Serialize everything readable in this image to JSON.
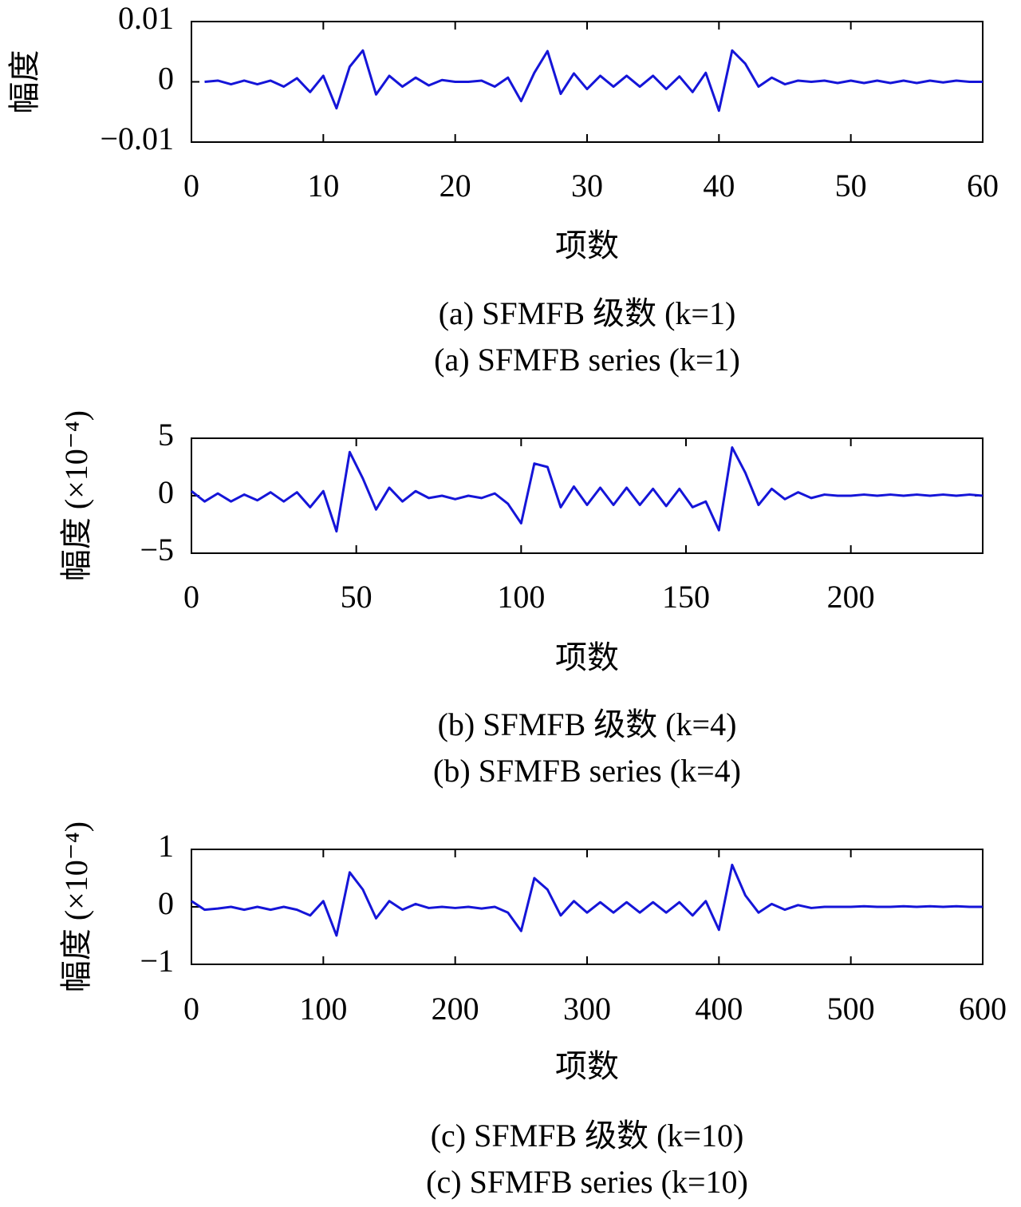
{
  "chart_data": [
    {
      "type": "line",
      "title": "(a) SFMFB 级数 (k=1)",
      "subtitle": "(a) SFMFB series (k=1)",
      "x_label": "项数",
      "y_label": "幅度",
      "color": "#1515d8",
      "x": [
        1,
        2,
        3,
        4,
        5,
        6,
        7,
        8,
        9,
        10,
        11,
        12,
        13,
        14,
        15,
        16,
        17,
        18,
        19,
        20,
        21,
        22,
        23,
        24,
        25,
        26,
        27,
        28,
        29,
        30,
        31,
        32,
        33,
        34,
        35,
        36,
        37,
        38,
        39,
        40,
        41,
        42,
        43,
        44,
        45,
        46,
        47,
        48,
        49,
        50,
        51,
        52,
        53,
        54,
        55,
        56,
        57,
        58,
        59,
        60
      ],
      "values": [
        0,
        0.0002,
        -0.0004,
        0.0002,
        -0.0004,
        0.0002,
        -0.0008,
        0.0006,
        -0.0017,
        0.001,
        -0.0044,
        0.0025,
        0.0052,
        -0.0021,
        0.001,
        -0.0008,
        0.0007,
        -0.0006,
        0.0003,
        0,
        0,
        0.0002,
        -0.0008,
        0.0007,
        -0.0032,
        0.0015,
        0.0051,
        -0.002,
        0.0014,
        -0.0012,
        0.001,
        -0.0008,
        0.001,
        -0.0008,
        0.001,
        -0.0012,
        0.0009,
        -0.0017,
        0.0015,
        -0.0048,
        0.0052,
        0.003,
        -0.0008,
        0.0007,
        -0.0004,
        0.0002,
        0,
        0.0002,
        -0.0002,
        0.0002,
        -0.0002,
        0.0002,
        -0.0002,
        0.0002,
        -0.0002,
        0.0002,
        -0.0001,
        0.0002,
        0,
        0
      ],
      "xlim": [
        0,
        60
      ],
      "xticks": [
        0,
        10,
        20,
        30,
        40,
        50,
        60
      ],
      "ylim": [
        -0.01,
        0.01
      ],
      "yticks": [
        {
          "value": -0.01,
          "label": "−0.01"
        },
        0,
        0.01
      ]
    },
    {
      "type": "line",
      "title": "(b) SFMFB 级数 (k=4)",
      "subtitle": "(b) SFMFB series (k=4)",
      "x_label": "项数",
      "y_label": "幅度 (×10⁻⁴)",
      "color": "#1515d8",
      "x": [
        0,
        4,
        8,
        12,
        16,
        20,
        24,
        28,
        32,
        36,
        40,
        44,
        48,
        52,
        56,
        60,
        64,
        68,
        72,
        76,
        80,
        84,
        88,
        92,
        96,
        100,
        104,
        108,
        112,
        116,
        120,
        124,
        128,
        132,
        136,
        140,
        144,
        148,
        152,
        156,
        160,
        164,
        168,
        172,
        176,
        180,
        184,
        188,
        192,
        196,
        200,
        204,
        208,
        212,
        216,
        220,
        224,
        228,
        232,
        236,
        240
      ],
      "values": [
        0.4,
        -0.5,
        0.2,
        -0.5,
        0.1,
        -0.4,
        0.3,
        -0.5,
        0.3,
        -1.0,
        0.4,
        -3.1,
        3.8,
        1.5,
        -1.2,
        0.7,
        -0.5,
        0.4,
        -0.2,
        0,
        -0.3,
        0,
        -0.2,
        0.2,
        -0.7,
        -2.4,
        2.8,
        2.5,
        -1.0,
        0.8,
        -0.8,
        0.7,
        -0.8,
        0.7,
        -0.8,
        0.6,
        -0.9,
        0.6,
        -1.0,
        -0.5,
        -3.0,
        4.2,
        2.0,
        -0.8,
        0.6,
        -0.3,
        0.3,
        -0.2,
        0.1,
        0,
        0,
        0.1,
        0,
        0.1,
        0,
        0.1,
        0,
        0.1,
        0,
        0.1,
        0
      ],
      "xlim": [
        0,
        240
      ],
      "xticks": [
        0,
        50,
        100,
        150,
        200
      ],
      "ylim": [
        -5,
        5
      ],
      "yticks": [
        {
          "value": -5,
          "label": "−5"
        },
        0,
        5
      ]
    },
    {
      "type": "line",
      "title": "(c) SFMFB 级数 (k=10)",
      "subtitle": "(c) SFMFB series (k=10)",
      "x_label": "项数",
      "y_label": "幅度 (×10⁻⁴)",
      "color": "#1515d8",
      "x": [
        0,
        10,
        20,
        30,
        40,
        50,
        60,
        70,
        80,
        90,
        100,
        110,
        120,
        130,
        140,
        150,
        160,
        170,
        180,
        190,
        200,
        210,
        220,
        230,
        240,
        250,
        260,
        270,
        280,
        290,
        300,
        310,
        320,
        330,
        340,
        350,
        360,
        370,
        380,
        390,
        400,
        410,
        420,
        430,
        440,
        450,
        460,
        470,
        480,
        490,
        500,
        510,
        520,
        530,
        540,
        550,
        560,
        570,
        580,
        590,
        600
      ],
      "values": [
        0.1,
        -0.05,
        -0.03,
        0,
        -0.05,
        0,
        -0.05,
        0,
        -0.05,
        -0.15,
        0.1,
        -0.5,
        0.6,
        0.3,
        -0.2,
        0.1,
        -0.05,
        0.05,
        -0.02,
        0,
        -0.02,
        0,
        -0.03,
        0,
        -0.1,
        -0.42,
        0.5,
        0.3,
        -0.15,
        0.1,
        -0.1,
        0.08,
        -0.1,
        0.08,
        -0.1,
        0.08,
        -0.1,
        0.08,
        -0.15,
        0.1,
        -0.4,
        0.73,
        0.2,
        -0.1,
        0.05,
        -0.05,
        0.03,
        -0.02,
        0,
        0,
        0,
        0.01,
        0,
        0,
        0.01,
        0,
        0.01,
        0,
        0.01,
        0,
        0
      ],
      "xlim": [
        0,
        600
      ],
      "xticks": [
        0,
        100,
        200,
        300,
        400,
        500,
        600
      ],
      "ylim": [
        -1,
        1
      ],
      "yticks": [
        {
          "value": -1,
          "label": "−1"
        },
        0,
        1
      ]
    }
  ]
}
